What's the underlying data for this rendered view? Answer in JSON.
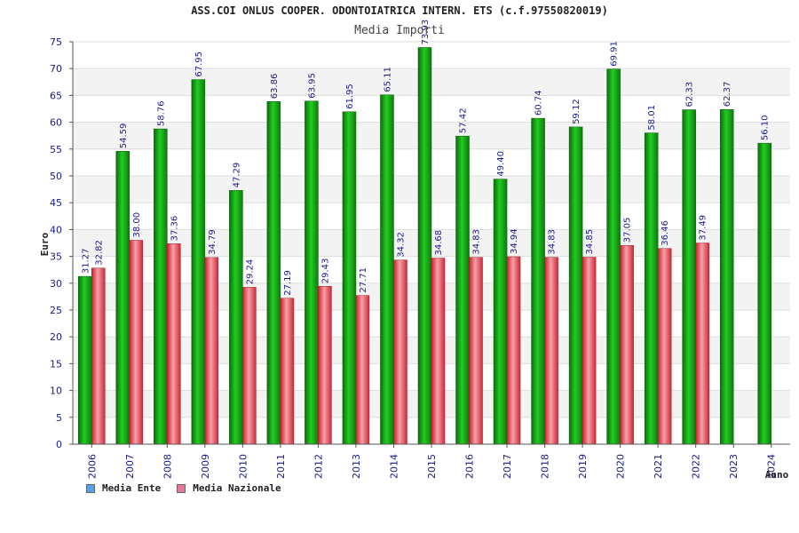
{
  "chart_data": {
    "type": "bar",
    "title": "ASS.COI ONLUS COOPER. ODONTOIATRICA INTERN. ETS (c.f.97550820019)",
    "subtitle": "Media Importi",
    "ylabel": "Euro",
    "xlabel": "Anno",
    "ylim": [
      0,
      75
    ],
    "yticks": [
      0,
      5,
      10,
      15,
      20,
      25,
      30,
      35,
      40,
      45,
      50,
      55,
      60,
      65,
      70,
      75
    ],
    "grid": true,
    "legend_position": "bottom-left",
    "categories": [
      "2006",
      "2007",
      "2008",
      "2009",
      "2010",
      "2011",
      "2012",
      "2013",
      "2014",
      "2015",
      "2016",
      "2017",
      "2018",
      "2019",
      "2020",
      "2021",
      "2022",
      "2023",
      "2024"
    ],
    "series": [
      {
        "name": "Media Ente",
        "color": "#1aa31a",
        "legend_color": "#5aa0e8",
        "values": [
          31.27,
          54.59,
          58.76,
          67.95,
          47.29,
          63.86,
          63.95,
          61.95,
          65.11,
          73.93,
          57.42,
          49.4,
          60.74,
          59.12,
          69.91,
          58.01,
          62.33,
          62.37,
          56.1
        ],
        "labels": [
          "31.27",
          "54.59",
          "58.76",
          "67.95",
          "47.29",
          "63.86",
          "63.95",
          "61.95",
          "65.11",
          "73.93",
          "57.42",
          "49.40",
          "60.74",
          "59.12",
          "69.91",
          "58.01",
          "62.33",
          "62.37",
          "56.10"
        ]
      },
      {
        "name": "Media Nazionale",
        "color": "#e0404a",
        "legend_color": "#e87898",
        "values": [
          32.82,
          38.0,
          37.36,
          34.79,
          29.24,
          27.19,
          29.43,
          27.71,
          34.32,
          34.68,
          34.83,
          34.94,
          34.83,
          34.85,
          37.05,
          36.46,
          37.49,
          null,
          null
        ],
        "labels": [
          "32.82",
          "38.00",
          "37.36",
          "34.79",
          "29.24",
          "27.19",
          "29.43",
          "27.71",
          "34.32",
          "34.68",
          "34.83",
          "34.94",
          "34.83",
          "34.85",
          "37.05",
          "36.46",
          "37.49",
          null,
          null
        ]
      }
    ]
  }
}
